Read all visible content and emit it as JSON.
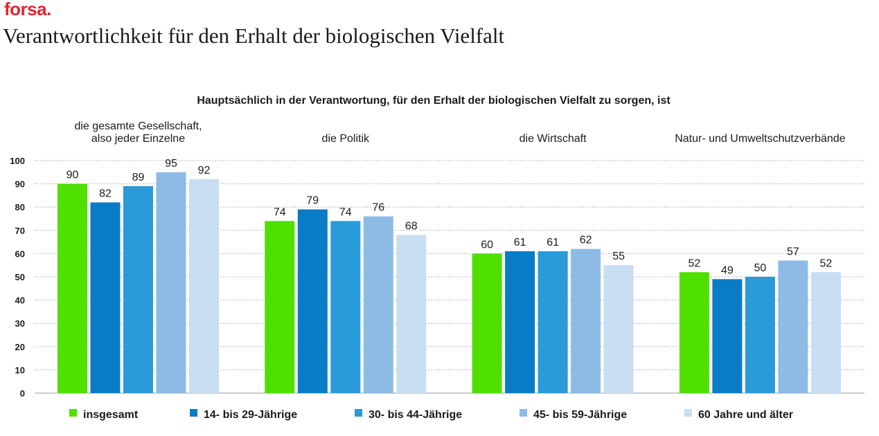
{
  "brand": "forsa.",
  "title": "Verantwortlichkeit für den Erhalt der biologischen Vielfalt",
  "chart_data": {
    "type": "bar",
    "title": "Hauptsächlich in der Verantwortung, für den Erhalt der biologischen Vielfalt zu sorgen, ist",
    "categories": [
      [
        "die gesamte Gesellschaft,",
        "also jeder Einzelne"
      ],
      [
        "die Politik"
      ],
      [
        "die Wirtschaft"
      ],
      [
        "Natur- und Umweltschutzverbände"
      ]
    ],
    "series": [
      {
        "name": "insgesamt",
        "color": "#4fe000",
        "values": [
          90,
          74,
          60,
          52
        ]
      },
      {
        "name": "14- bis 29-Jährige",
        "color": "#0a7bc5",
        "values": [
          82,
          79,
          61,
          49
        ]
      },
      {
        "name": "30- bis 44-Jährige",
        "color": "#2a9ad9",
        "values": [
          89,
          74,
          61,
          50
        ]
      },
      {
        "name": "45- bis 59-Jährige",
        "color": "#8dbbe6",
        "values": [
          95,
          76,
          62,
          57
        ]
      },
      {
        "name": "60 Jahre und älter",
        "color": "#c9ddf3",
        "values": [
          92,
          68,
          55,
          52
        ]
      }
    ],
    "ylim": [
      0,
      100
    ],
    "yticks": [
      0,
      10,
      20,
      30,
      40,
      50,
      60,
      70,
      80,
      90,
      100
    ],
    "grid": true,
    "legend": "bottom"
  }
}
